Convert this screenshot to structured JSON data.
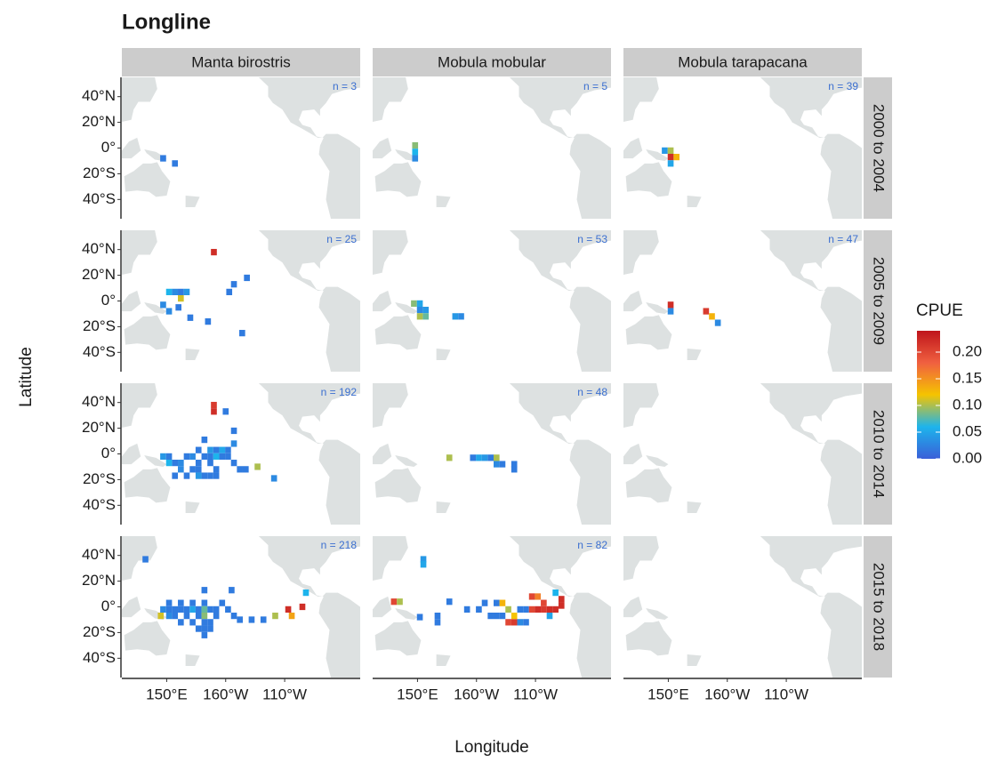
{
  "chart_data": {
    "type": "tile-map",
    "title": "Longline",
    "x_label": "Longitude",
    "y_label": "Latitude",
    "columns": [
      "Manta birostris",
      "Mobula mobular",
      "Mobula tarapacana"
    ],
    "rows": [
      "2000 to 2004",
      "2005 to 2009",
      "2010 to 2014",
      "2015 to 2018"
    ],
    "xlim": [
      112,
      314
    ],
    "ylim": [
      -55,
      55
    ],
    "xticks": [
      {
        "value": 150,
        "label": "150°E"
      },
      {
        "value": 200,
        "label": "160°W"
      },
      {
        "value": 250,
        "label": "110°W"
      }
    ],
    "yticks": [
      {
        "value": 40,
        "label": "40°N"
      },
      {
        "value": 20,
        "label": "20°N"
      },
      {
        "value": 0,
        "label": "0°"
      },
      {
        "value": -20,
        "label": "20°S"
      },
      {
        "value": -40,
        "label": "40°S"
      }
    ],
    "legend": {
      "title": "CPUE",
      "lim": [
        0,
        0.24
      ],
      "ticks": [
        {
          "value": 0,
          "label": "0.00"
        },
        {
          "value": 0.05,
          "label": "0.05"
        },
        {
          "value": 0.1,
          "label": "0.10"
        },
        {
          "value": 0.15,
          "label": "0.15"
        },
        {
          "value": 0.2,
          "label": "0.20"
        }
      ],
      "colors": [
        "#3a5fd8",
        "#1db4ec",
        "#f5c400",
        "#f06040",
        "#bf151b"
      ]
    },
    "panels": [
      [
        {
          "n_label": "n = 3",
          "tiles": [
            [
              147,
              -8,
              0.02
            ],
            [
              157,
              -12,
              0.02
            ]
          ]
        },
        {
          "n_label": "n = 5",
          "tiles": [
            [
              148,
              2,
              0.09
            ],
            [
              148,
              -3,
              0.06
            ],
            [
              148,
              -8,
              0.03
            ]
          ]
        },
        {
          "n_label": "n = 39",
          "tiles": [
            [
              147,
              -2,
              0.04
            ],
            [
              152,
              -2,
              0.1
            ],
            [
              152,
              -7,
              0.22
            ],
            [
              157,
              -7,
              0.13
            ],
            [
              152,
              -12,
              0.05
            ]
          ]
        }
      ],
      [
        {
          "n_label": "n = 25",
          "tiles": [
            [
              190,
              38,
              0.22
            ],
            [
              218,
              18,
              0.02
            ],
            [
              207,
              13,
              0.02
            ],
            [
              203,
              7,
              0.02
            ],
            [
              152,
              7,
              0.06
            ],
            [
              157,
              7,
              0.03
            ],
            [
              162,
              7,
              0.02
            ],
            [
              167,
              7,
              0.04
            ],
            [
              162,
              2,
              0.11
            ],
            [
              147,
              -3,
              0.03
            ],
            [
              152,
              -8,
              0.03
            ],
            [
              160,
              -5,
              0.02
            ],
            [
              170,
              -13,
              0.02
            ],
            [
              185,
              -16,
              0.02
            ],
            [
              214,
              -25,
              0.02
            ]
          ]
        },
        {
          "n_label": "n = 53",
          "tiles": [
            [
              147,
              -2,
              0.09
            ],
            [
              152,
              -2,
              0.05
            ],
            [
              152,
              -7,
              0.03
            ],
            [
              157,
              -7,
              0.04
            ],
            [
              152,
              -12,
              0.1
            ],
            [
              157,
              -12,
              0.08
            ],
            [
              182,
              -12,
              0.04
            ],
            [
              187,
              -12,
              0.03
            ]
          ]
        },
        {
          "n_label": "n = 47",
          "tiles": [
            [
              152,
              -3,
              0.22
            ],
            [
              152,
              -8,
              0.03
            ],
            [
              182,
              -8,
              0.21
            ],
            [
              187,
              -12,
              0.13
            ],
            [
              192,
              -17,
              0.03
            ]
          ]
        }
      ],
      [
        {
          "n_label": "n = 192",
          "tiles": [
            [
              190,
              33,
              0.22
            ],
            [
              190,
              38,
              0.21
            ],
            [
              200,
              33,
              0.02
            ],
            [
              182,
              11,
              0.02
            ],
            [
              207,
              18,
              0.02
            ],
            [
              207,
              8,
              0.03
            ],
            [
              202,
              3,
              0.02
            ],
            [
              177,
              3,
              0.02
            ],
            [
              187,
              3,
              0.04
            ],
            [
              192,
              3,
              0.02
            ],
            [
              197,
              3,
              0.05
            ],
            [
              167,
              -2,
              0.02
            ],
            [
              172,
              -2,
              0.03
            ],
            [
              182,
              -2,
              0.02
            ],
            [
              187,
              -2,
              0.02
            ],
            [
              192,
              -2,
              0.06
            ],
            [
              197,
              -2,
              0.02
            ],
            [
              202,
              -2,
              0.02
            ],
            [
              147,
              -2,
              0.04
            ],
            [
              152,
              -2,
              0.02
            ],
            [
              157,
              -7,
              0.02
            ],
            [
              162,
              -7,
              0.03
            ],
            [
              177,
              -7,
              0.02
            ],
            [
              187,
              -7,
              0.02
            ],
            [
              207,
              -7,
              0.02
            ],
            [
              212,
              -12,
              0.02
            ],
            [
              172,
              -12,
              0.02
            ],
            [
              177,
              -12,
              0.02
            ],
            [
              162,
              -12,
              0.03
            ],
            [
              157,
              -17,
              0.02
            ],
            [
              167,
              -17,
              0.02
            ],
            [
              182,
              -17,
              0.02
            ],
            [
              187,
              -17,
              0.02
            ],
            [
              192,
              -17,
              0.02
            ],
            [
              177,
              -17,
              0.04
            ],
            [
              227,
              -10,
              0.1
            ],
            [
              217,
              -12,
              0.02
            ],
            [
              241,
              -19,
              0.03
            ],
            [
              152,
              -7,
              0.06
            ],
            [
              192,
              -12,
              0.02
            ]
          ]
        },
        {
          "n_label": "n = 48",
          "tiles": [
            [
              177,
              -3,
              0.1
            ],
            [
              197,
              -3,
              0.02
            ],
            [
              202,
              -3,
              0.05
            ],
            [
              207,
              -3,
              0.04
            ],
            [
              212,
              -3,
              0.02
            ],
            [
              217,
              -3,
              0.1
            ],
            [
              217,
              -8,
              0.03
            ],
            [
              222,
              -8,
              0.02
            ],
            [
              232,
              -8,
              0.02
            ],
            [
              232,
              -12,
              0.02
            ]
          ]
        },
        {
          "tiles": []
        }
      ],
      [
        {
          "n_label": "n = 218",
          "tiles": [
            [
              132,
              37,
              0.02
            ],
            [
              152,
              3,
              0.02
            ],
            [
              162,
              3,
              0.02
            ],
            [
              172,
              3,
              0.02
            ],
            [
              182,
              3,
              0.02
            ],
            [
              197,
              3,
              0.02
            ],
            [
              205,
              13,
              0.02
            ],
            [
              182,
              13,
              0.02
            ],
            [
              147,
              -2,
              0.03
            ],
            [
              152,
              -2,
              0.02
            ],
            [
              157,
              -2,
              0.02
            ],
            [
              162,
              -2,
              0.02
            ],
            [
              167,
              -2,
              0.02
            ],
            [
              172,
              -2,
              0.05
            ],
            [
              177,
              -2,
              0.02
            ],
            [
              182,
              -2,
              0.08
            ],
            [
              187,
              -2,
              0.02
            ],
            [
              192,
              -2,
              0.02
            ],
            [
              202,
              -2,
              0.02
            ],
            [
              152,
              -7,
              0.03
            ],
            [
              157,
              -7,
              0.02
            ],
            [
              167,
              -7,
              0.02
            ],
            [
              177,
              -7,
              0.02
            ],
            [
              182,
              -7,
              0.09
            ],
            [
              192,
              -7,
              0.02
            ],
            [
              207,
              -7,
              0.02
            ],
            [
              162,
              -12,
              0.02
            ],
            [
              172,
              -12,
              0.02
            ],
            [
              182,
              -12,
              0.02
            ],
            [
              187,
              -12,
              0.02
            ],
            [
              177,
              -17,
              0.02
            ],
            [
              182,
              -17,
              0.02
            ],
            [
              187,
              -17,
              0.02
            ],
            [
              182,
              -22,
              0.02
            ],
            [
              212,
              -10,
              0.02
            ],
            [
              222,
              -10,
              0.02
            ],
            [
              232,
              -10,
              0.02
            ],
            [
              242,
              -7,
              0.1
            ],
            [
              253,
              -2,
              0.22
            ],
            [
              256,
              -7,
              0.14
            ],
            [
              265,
              0,
              0.22
            ],
            [
              268,
              11,
              0.06
            ],
            [
              145,
              -7,
              0.11
            ]
          ]
        },
        {
          "n_label": "n = 82",
          "tiles": [
            [
              130,
              4,
              0.2
            ],
            [
              135,
              4,
              0.1
            ],
            [
              155,
              37,
              0.04
            ],
            [
              155,
              33,
              0.05
            ],
            [
              177,
              4,
              0.02
            ],
            [
              152,
              -8,
              0.02
            ],
            [
              167,
              -12,
              0.02
            ],
            [
              167,
              -7,
              0.02
            ],
            [
              192,
              -2,
              0.02
            ],
            [
              202,
              -2,
              0.02
            ],
            [
              207,
              3,
              0.02
            ],
            [
              212,
              -7,
              0.02
            ],
            [
              217,
              3,
              0.02
            ],
            [
              222,
              3,
              0.13
            ],
            [
              217,
              -7,
              0.02
            ],
            [
              222,
              -7,
              0.02
            ],
            [
              227,
              -12,
              0.2
            ],
            [
              232,
              -12,
              0.21
            ],
            [
              227,
              -2,
              0.1
            ],
            [
              232,
              -7,
              0.12
            ],
            [
              237,
              -2,
              0.02
            ],
            [
              242,
              -2,
              0.02
            ],
            [
              247,
              8,
              0.2
            ],
            [
              252,
              8,
              0.16
            ],
            [
              252,
              -2,
              0.22
            ],
            [
              257,
              3,
              0.2
            ],
            [
              257,
              -2,
              0.21
            ],
            [
              262,
              -2,
              0.22
            ],
            [
              267,
              -2,
              0.22
            ],
            [
              262,
              -7,
              0.05
            ],
            [
              267,
              11,
              0.06
            ],
            [
              272,
              6,
              0.22
            ],
            [
              272,
              1,
              0.22
            ],
            [
              247,
              -2,
              0.2
            ],
            [
              242,
              -12,
              0.02
            ],
            [
              237,
              -12,
              0.03
            ]
          ]
        },
        {
          "tiles": []
        }
      ]
    ]
  }
}
